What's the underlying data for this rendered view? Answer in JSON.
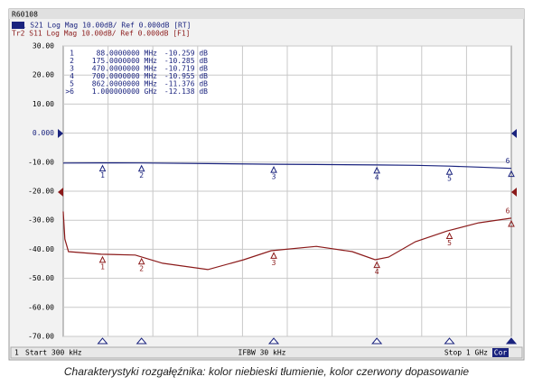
{
  "chart_data": {
    "type": "line",
    "window_title": "R60108",
    "caption": "Charakterystyki rozgałęźnika: kolor niebieski tłumienie, kolor czerwony dopasowanie",
    "status": {
      "channel": "1",
      "start": "Start 300 kHz",
      "ifbw": "IFBW 30 kHz",
      "stop": "Stop 1 GHz",
      "cor": "Cor"
    },
    "xlim": [
      0.3,
      1000
    ],
    "ylim": [
      -70,
      30
    ],
    "yticks": [
      {
        "value": -70,
        "label": "-70.00"
      },
      {
        "value": -60,
        "label": "-60.00"
      },
      {
        "value": -50,
        "label": "-50.00"
      },
      {
        "value": -40,
        "label": "-40.00"
      },
      {
        "value": -30,
        "label": "-30.00"
      },
      {
        "value": -20,
        "label": "-20.00"
      },
      {
        "value": -10,
        "label": "-10.00"
      },
      {
        "value": 0,
        "label": "0.000"
      },
      {
        "value": 10,
        "label": "10.00"
      },
      {
        "value": 20,
        "label": "20.00"
      },
      {
        "value": 30,
        "label": "30.00"
      }
    ],
    "grid": true,
    "marker_labels": [
      "1",
      "2",
      "3",
      "4",
      "5",
      "6"
    ],
    "marker_table": [
      [
        "1",
        "88.0000000 MHz",
        "-10.259 dB"
      ],
      [
        "2",
        "175.0000000 MHz",
        "-10.285 dB"
      ],
      [
        "3",
        "470.0000000 MHz",
        "-10.719 dB"
      ],
      [
        "4",
        "700.0000000 MHz",
        "-10.955 dB"
      ],
      [
        "5",
        "862.0000000 MHz",
        "-11.376 dB"
      ],
      [
        ">6",
        "1.000000000 GHz",
        "-12.138 dB"
      ]
    ],
    "series": [
      {
        "name": "Tr1 S21 Log Mag 10.00dB/ Ref 0.000dB [RT]",
        "color": "#1a237e",
        "x": [
          0.3,
          88,
          175,
          323,
          470,
          565,
          700,
          786,
          862,
          927,
          1000
        ],
        "values": [
          -10.3,
          -10.259,
          -10.285,
          -10.5,
          -10.719,
          -10.8,
          -10.955,
          -11.1,
          -11.376,
          -11.7,
          -12.138
        ],
        "marker_x": [
          88,
          175,
          470,
          700,
          862,
          1000
        ],
        "marker_values": [
          -10.259,
          -10.285,
          -10.719,
          -10.955,
          -11.376,
          -12.138
        ]
      },
      {
        "name": "Tr2 S11 Log Mag 10.00dB/ Ref 0.000dB [F1]",
        "color": "#8b1a1a",
        "x": [
          0.3,
          4,
          12,
          85,
          161,
          222,
          323,
          403,
          464,
          565,
          645,
          696,
          726,
          786,
          857,
          927,
          1000
        ],
        "values": [
          -27,
          -36.5,
          -40.8,
          -41.7,
          -42,
          -44.8,
          -47,
          -43.6,
          -40.5,
          -39,
          -40.8,
          -43.6,
          -42.7,
          -37.4,
          -33.7,
          -30.9,
          -29.3
        ],
        "marker_x": [
          88,
          175,
          470,
          700,
          862,
          1000
        ],
        "marker_values": [
          -41.7,
          -42.3,
          -40.3,
          -43.5,
          -33.5,
          -29.3
        ]
      }
    ]
  }
}
